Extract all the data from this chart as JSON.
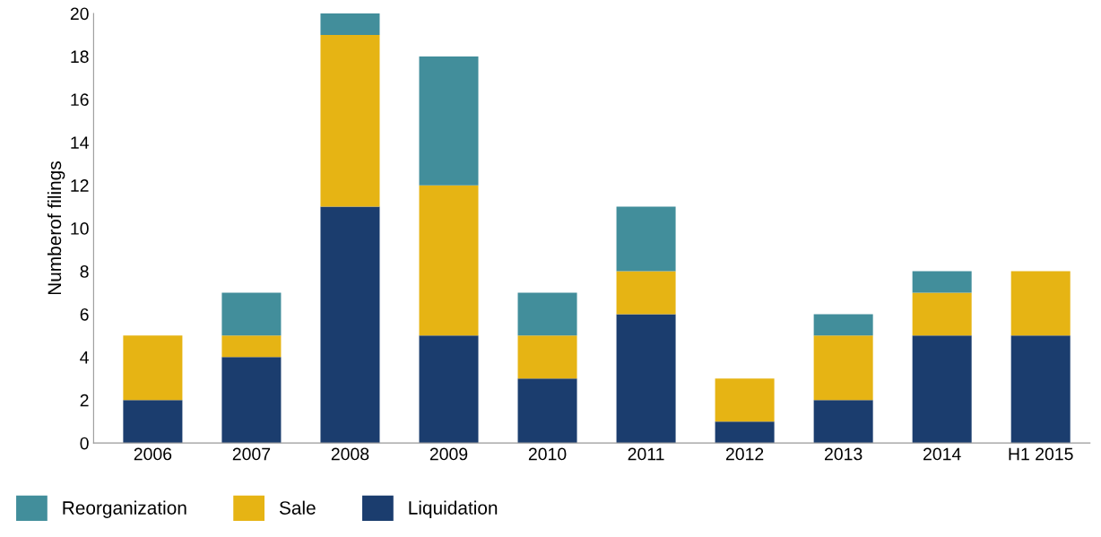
{
  "chart_data": {
    "type": "bar",
    "stacked": true,
    "ylabel": "Numberof filings",
    "categories": [
      "2006",
      "2007",
      "2008",
      "2009",
      "2010",
      "2011",
      "2012",
      "2013",
      "2014",
      "H1 2015"
    ],
    "series": [
      {
        "name": "Liquidation",
        "color": "#1b3d6e",
        "values": [
          2,
          4,
          11,
          5,
          3,
          6,
          1,
          2,
          5,
          5
        ]
      },
      {
        "name": "Sale",
        "color": "#e6b414",
        "values": [
          3,
          1,
          8,
          7,
          2,
          2,
          2,
          3,
          2,
          3
        ]
      },
      {
        "name": "Reorganization",
        "color": "#428e9b",
        "values": [
          0,
          2,
          1,
          6,
          2,
          3,
          0,
          1,
          1,
          0
        ]
      }
    ],
    "ylim": [
      0,
      20
    ],
    "yticks": [
      0,
      2,
      4,
      6,
      8,
      10,
      12,
      14,
      16,
      18,
      20
    ],
    "grid": false,
    "legend": "bottom left"
  }
}
